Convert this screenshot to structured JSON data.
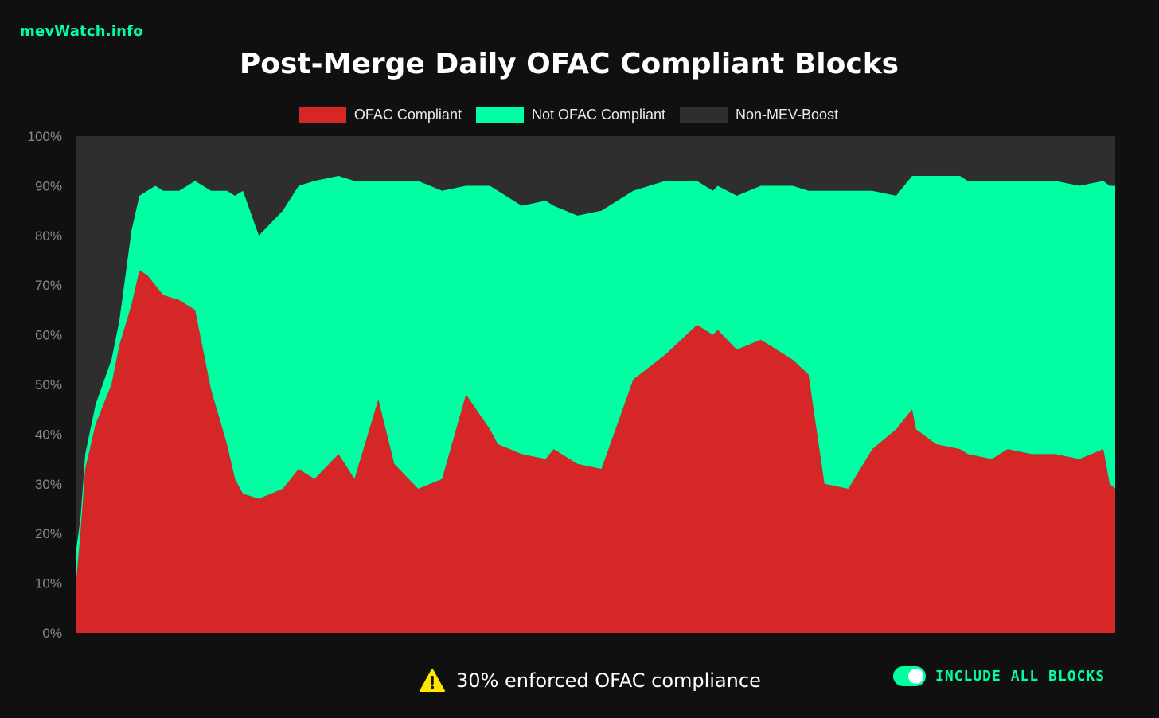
{
  "brand": "mevWatch.info",
  "colors": {
    "background": "#101010",
    "brand": "#00ff9f",
    "compliant": "#d62728",
    "not_compliant": "#00ffa3",
    "non_mev_boost": "#2e2e2e",
    "warning": "#ffe600"
  },
  "legend": {
    "items": [
      {
        "label": "OFAC Compliant",
        "color": "#d62728"
      },
      {
        "label": "Not OFAC Compliant",
        "color": "#00ffa3"
      },
      {
        "label": "Non-MEV-Boost",
        "color": "#2e2e2e"
      }
    ]
  },
  "footer": {
    "warning_icon": "warning-triangle-icon",
    "note": "30% enforced OFAC compliance",
    "toggle_label": "INCLUDE ALL BLOCKS",
    "toggle_on": true
  },
  "chart_data": {
    "type": "area",
    "stacked": true,
    "title": "Post-Merge Daily OFAC Compliant Blocks",
    "ylim": [
      0,
      100
    ],
    "yticks": [
      "0%",
      "10%",
      "20%",
      "30%",
      "40%",
      "50%",
      "60%",
      "70%",
      "80%",
      "90%",
      "100%"
    ],
    "grid": false,
    "legend_position": "top-center",
    "x_index": [
      0,
      6,
      12,
      25,
      45,
      55,
      70,
      80,
      90,
      100,
      110,
      130,
      150,
      170,
      190,
      200,
      210,
      230,
      260,
      280,
      300,
      330,
      350,
      380,
      400,
      430,
      460,
      490,
      520,
      530,
      560,
      590,
      600,
      630,
      660,
      700,
      740,
      780,
      800,
      806,
      830,
      860,
      900,
      920,
      940,
      970,
      1000,
      1030,
      1050,
      1055,
      1080,
      1110,
      1120,
      1150,
      1170,
      1200,
      1230,
      1260,
      1290,
      1298,
      1305
    ],
    "series": [
      {
        "name": "OFAC Compliant",
        "values": [
          9,
          20,
          33,
          42,
          50,
          58,
          66,
          73,
          72,
          70,
          68,
          67,
          65,
          49,
          38,
          31,
          28,
          27,
          29,
          33,
          31,
          36,
          31,
          47,
          34,
          29,
          31,
          48,
          41,
          38,
          36,
          35,
          37,
          34,
          33,
          51,
          56,
          62,
          60,
          61,
          57,
          59,
          55,
          52,
          30,
          29,
          37,
          41,
          45,
          41,
          38,
          37,
          36,
          35,
          37,
          36,
          36,
          35,
          37,
          30,
          29
        ]
      },
      {
        "name": "Not OFAC Compliant",
        "values": [
          7,
          3,
          3,
          4,
          5,
          5,
          15,
          15,
          17,
          20,
          21,
          22,
          26,
          40,
          51,
          57,
          61,
          53,
          56,
          57,
          60,
          56,
          60,
          44,
          57,
          62,
          58,
          42,
          49,
          51,
          50,
          52,
          49,
          50,
          52,
          38,
          35,
          29,
          29,
          29,
          31,
          31,
          35,
          37,
          59,
          60,
          52,
          47,
          47,
          51,
          54,
          55,
          55,
          56,
          54,
          55,
          55,
          55,
          54,
          60,
          61
        ]
      },
      {
        "name": "Non-MEV-Boost",
        "values": [
          84,
          77,
          64,
          54,
          45,
          37,
          19,
          12,
          11,
          10,
          11,
          11,
          9,
          11,
          11,
          12,
          11,
          20,
          15,
          10,
          9,
          8,
          9,
          9,
          9,
          9,
          11,
          10,
          10,
          11,
          14,
          13,
          14,
          16,
          15,
          11,
          9,
          9,
          11,
          10,
          12,
          10,
          10,
          11,
          11,
          11,
          11,
          12,
          8,
          8,
          8,
          8,
          9,
          9,
          9,
          9,
          9,
          10,
          9,
          10,
          10
        ]
      }
    ]
  }
}
